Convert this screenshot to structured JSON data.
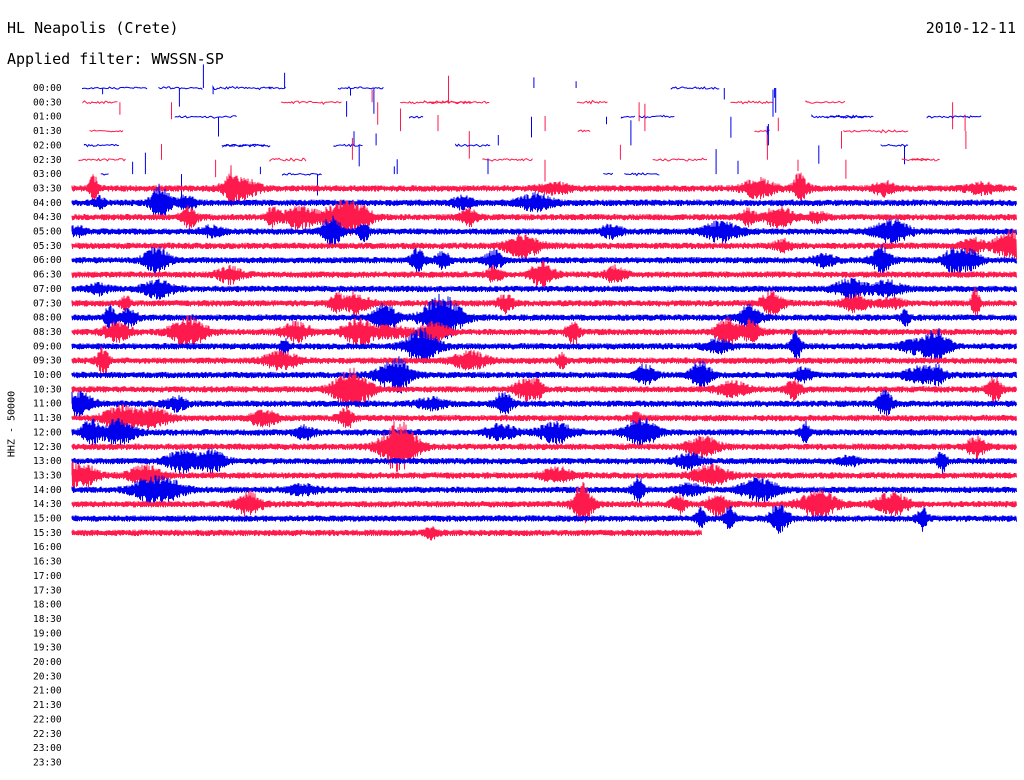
{
  "header": {
    "station": "HL Neapolis (Crete)",
    "date": "2010-12-11",
    "filter_label": "Applied filter: WWSSN-SP"
  },
  "chart_data": {
    "type": "line",
    "title": "HL Neapolis (Crete)",
    "subtitle": "Applied filter: WWSSN-SP",
    "date": "2010-12-11",
    "ylabel": "HHZ - 50000",
    "xlabel": "",
    "row_labels": [
      "00:00",
      "00:30",
      "01:00",
      "01:30",
      "02:00",
      "02:30",
      "03:00",
      "03:30",
      "04:00",
      "04:30",
      "05:00",
      "05:30",
      "06:00",
      "06:30",
      "07:00",
      "07:30",
      "08:00",
      "08:30",
      "09:00",
      "09:30",
      "10:00",
      "10:30",
      "11:00",
      "11:30",
      "12:00",
      "12:30",
      "13:00",
      "13:30",
      "14:00",
      "14:30",
      "15:00",
      "15:30",
      "16:00",
      "16:30",
      "17:00",
      "17:30",
      "18:00",
      "18:30",
      "19:00",
      "19:30",
      "20:00",
      "20:30",
      "21:00",
      "21:30",
      "22:00",
      "22:30",
      "23:00",
      "23:30"
    ],
    "row_minutes": 30,
    "data_end_time": "15:50",
    "colors": {
      "even_rows": "#0000ee",
      "odd_rows": "#ff1a4d"
    },
    "phases": [
      {
        "rows": "00:00-03:00",
        "character": "sparse spikes and short segments"
      },
      {
        "rows": "03:30-15:30",
        "character": "continuous dense noise"
      }
    ],
    "grid": false,
    "legend": "none"
  }
}
